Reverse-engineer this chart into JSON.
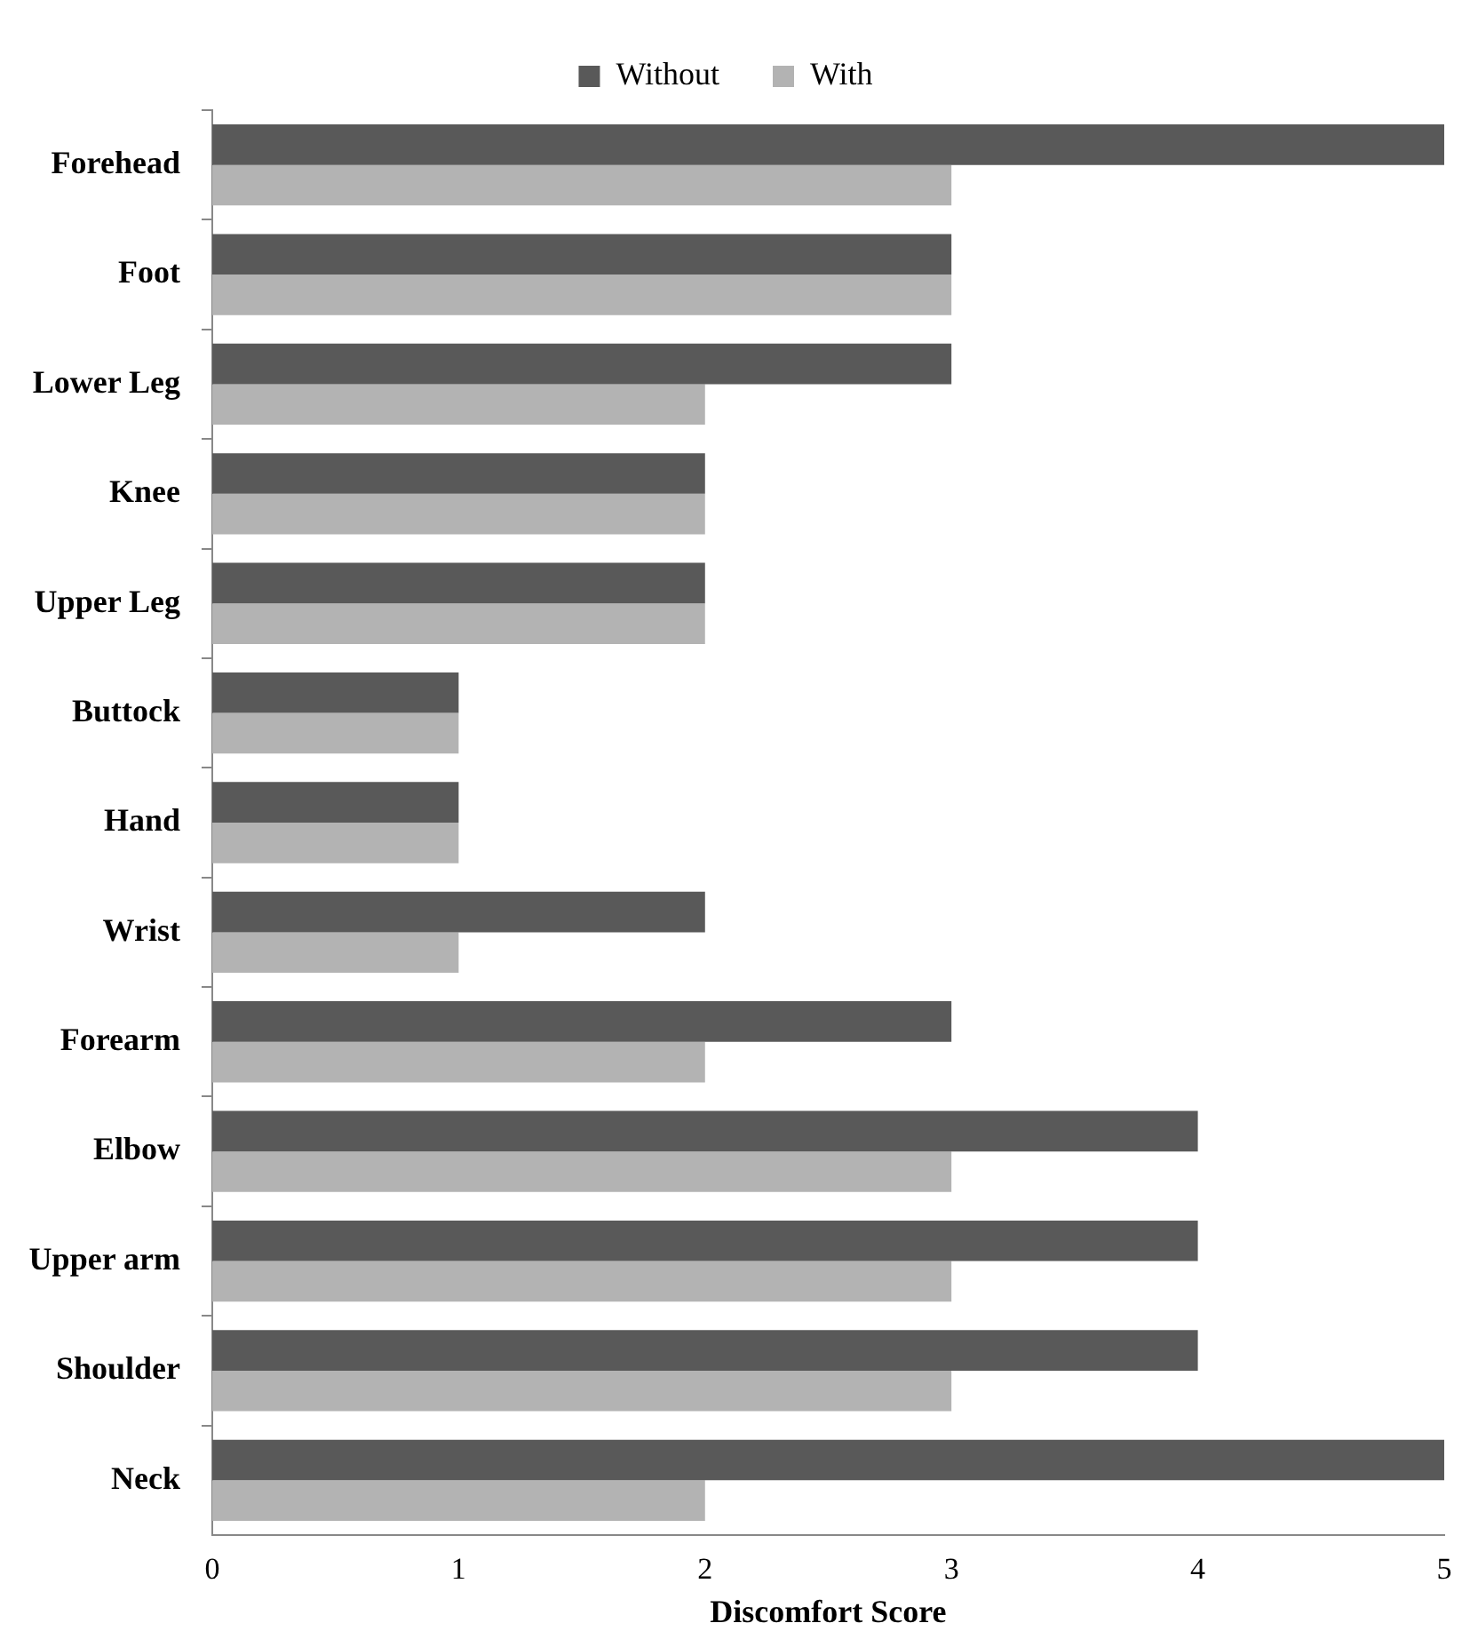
{
  "chart_data": {
    "type": "bar",
    "orientation": "horizontal",
    "xlabel": "Discomfort Score",
    "categories": [
      "Forehead",
      "Foot",
      "Lower Leg",
      "Knee",
      "Upper Leg",
      "Buttock",
      "Hand",
      "Wrist",
      "Forearm",
      "Elbow",
      "Upper arm",
      "Shoulder",
      "Neck"
    ],
    "series": [
      {
        "name": "Without",
        "color": "#595959",
        "values": [
          5,
          3,
          3,
          2,
          2,
          1,
          1,
          2,
          3,
          4,
          4,
          4,
          5
        ]
      },
      {
        "name": "With",
        "color": "#b3b3b3",
        "values": [
          3,
          3,
          2,
          2,
          2,
          1,
          1,
          1,
          2,
          3,
          3,
          3,
          2
        ]
      }
    ],
    "xlim": [
      0,
      5
    ],
    "xticks": [
      0,
      1,
      2,
      3,
      4,
      5
    ],
    "grid": false,
    "legend": "top"
  }
}
